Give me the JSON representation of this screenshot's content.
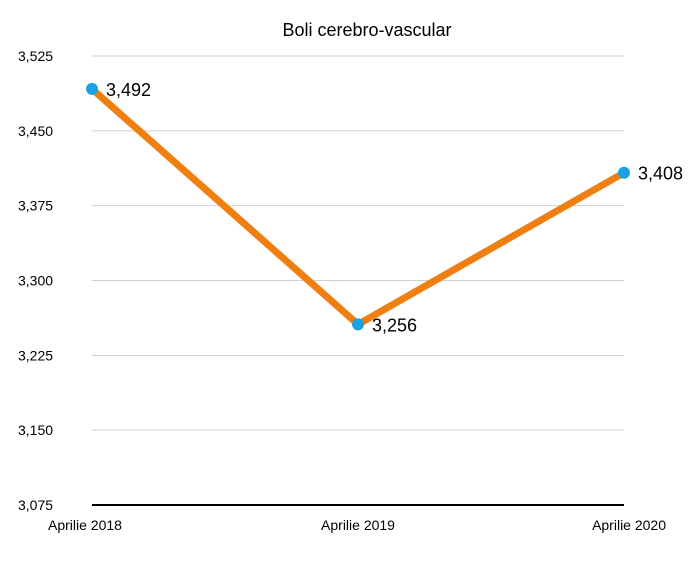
{
  "chart_data": {
    "type": "line",
    "title": "Boli cerebro-vascular",
    "xlabel": "",
    "ylabel": "",
    "categories": [
      "Aprilie 2018",
      "Aprilie 2019",
      "Aprilie 2020"
    ],
    "series": [
      {
        "values": [
          3492,
          3256,
          3408
        ],
        "labels": [
          "3,492",
          "3,256",
          "3,408"
        ]
      }
    ],
    "ylim": [
      3075,
      3525
    ],
    "yticks": [
      3075,
      3150,
      3225,
      3300,
      3375,
      3450,
      3525
    ],
    "ytick_labels": [
      "3,075",
      "3,150",
      "3,225",
      "3,300",
      "3,375",
      "3,450",
      "3,525"
    ],
    "grid": true,
    "legend": "none",
    "colors": {
      "line": "#F07F12",
      "marker": "#1BA1E2",
      "grid": "#D0D0D0",
      "axis": "#000000"
    }
  }
}
